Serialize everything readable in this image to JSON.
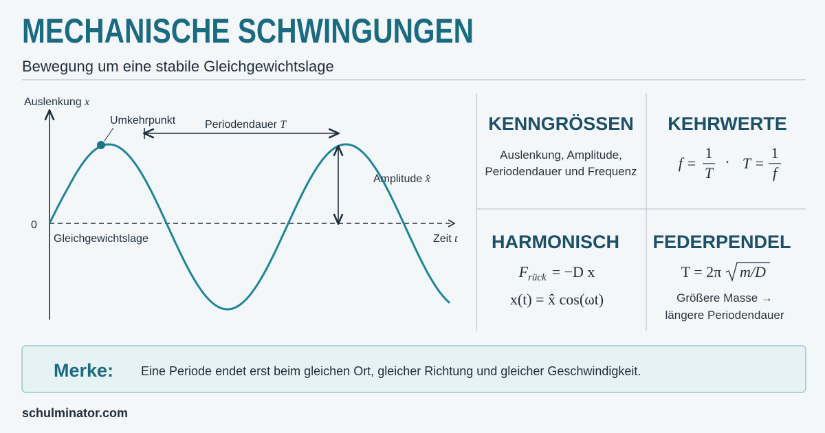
{
  "header": {
    "title": "MECHANISCHE SCHWINGUNGEN",
    "subtitle": "Bewegung um eine stabile Gleichgewichtslage"
  },
  "diagram": {
    "y_axis": {
      "label": "Auslenkung",
      "symbol": "x"
    },
    "zero": "0",
    "turning_point": "Umkehrpunkt",
    "period": {
      "label": "Periodendauer",
      "symbol": "T"
    },
    "amplitude": {
      "label": "Amplitude",
      "symbol": "x̂"
    },
    "equilibrium": "Gleichgewichtslage",
    "x_axis": {
      "label": "Zeit",
      "symbol": "t"
    }
  },
  "cards": {
    "kenngroessen": {
      "title": "KENNGRÖSSEN",
      "lines": [
        "Auslenkung, Amplitude,",
        "Periodendauer und Frequenz"
      ]
    },
    "kehrwerte": {
      "title": "KEHRWERTE",
      "left": {
        "lhs": "f =",
        "num": "1",
        "den": "T"
      },
      "separator": "·",
      "right": {
        "lhs": "T =",
        "num": "1",
        "den": "f"
      }
    },
    "harmonisch": {
      "title": "HARMONISCH",
      "force": {
        "symbol": "F",
        "subscript": "rück",
        "rest": "= −D x"
      },
      "equation": "x(t) = x̂ cos(ωt)"
    },
    "federpendel": {
      "title": "FEDERPENDEL",
      "formula": {
        "lhs": "T = 2π",
        "radicand": "m/D"
      },
      "lines": [
        "Größere Masse →",
        "längere Periodendauer"
      ]
    }
  },
  "note": {
    "label": "Merke:",
    "text": "Eine Periode endet erst beim gleichen Ort, gleicher Richtung und gleicher Geschwindigkeit."
  },
  "footer": "schulminator.com"
}
